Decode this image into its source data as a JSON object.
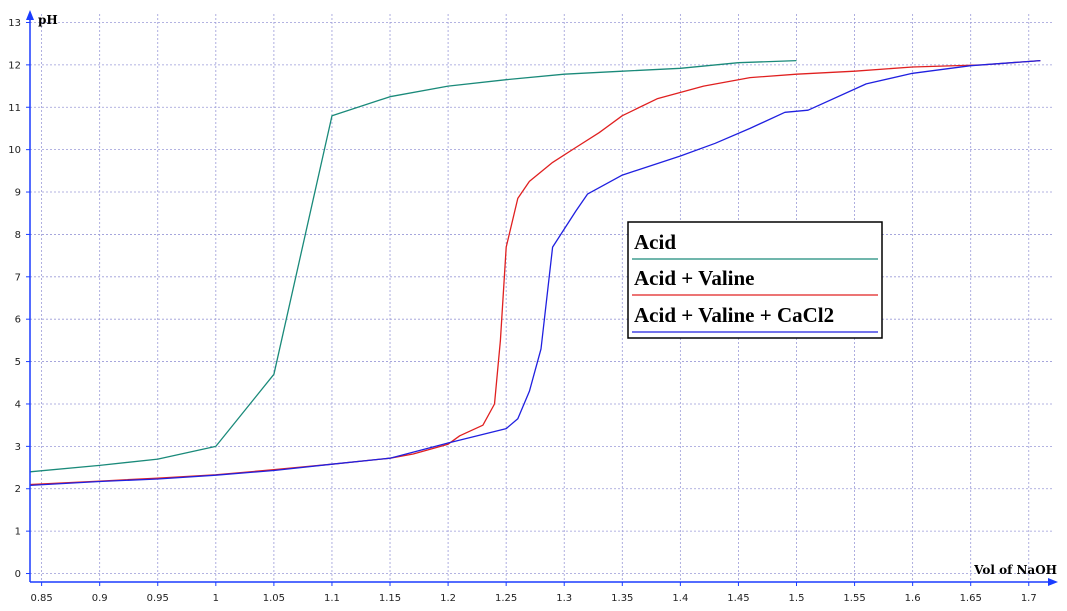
{
  "chart_data": {
    "type": "line",
    "xlabel": "Vol of NaOH",
    "ylabel": "pH",
    "xlim": [
      0.84,
      1.72
    ],
    "ylim": [
      -0.2,
      13.2
    ],
    "x_ticks": [
      "0.85",
      "0.9",
      "0.95",
      "1",
      "1.05",
      "1.1",
      "1.15",
      "1.2",
      "1.25",
      "1.3",
      "1.35",
      "1.4",
      "1.45",
      "1.5",
      "1.55",
      "1.6",
      "1.65",
      "1.7"
    ],
    "y_ticks": [
      "0",
      "1",
      "2",
      "3",
      "4",
      "5",
      "6",
      "7",
      "8",
      "9",
      "10",
      "11",
      "12",
      "13"
    ],
    "grid": true,
    "legend_position": "right-middle",
    "series": [
      {
        "name": "Acid",
        "color": "#1a8a7a",
        "points": [
          [
            0.84,
            2.4
          ],
          [
            0.9,
            2.55
          ],
          [
            0.95,
            2.7
          ],
          [
            1.0,
            3.0
          ],
          [
            1.05,
            4.7
          ],
          [
            1.1,
            10.8
          ],
          [
            1.15,
            11.25
          ],
          [
            1.2,
            11.5
          ],
          [
            1.25,
            11.65
          ],
          [
            1.3,
            11.78
          ],
          [
            1.35,
            11.85
          ],
          [
            1.4,
            11.92
          ],
          [
            1.45,
            12.05
          ],
          [
            1.5,
            12.1
          ]
        ]
      },
      {
        "name": "Acid + Valine",
        "color": "#e02020",
        "points": [
          [
            0.84,
            2.1
          ],
          [
            0.9,
            2.18
          ],
          [
            0.95,
            2.25
          ],
          [
            1.0,
            2.33
          ],
          [
            1.05,
            2.45
          ],
          [
            1.1,
            2.58
          ],
          [
            1.15,
            2.72
          ],
          [
            1.17,
            2.82
          ],
          [
            1.2,
            3.05
          ],
          [
            1.21,
            3.25
          ],
          [
            1.23,
            3.5
          ],
          [
            1.24,
            4.0
          ],
          [
            1.245,
            5.5
          ],
          [
            1.25,
            7.7
          ],
          [
            1.26,
            8.85
          ],
          [
            1.27,
            9.25
          ],
          [
            1.29,
            9.7
          ],
          [
            1.31,
            10.05
          ],
          [
            1.33,
            10.4
          ],
          [
            1.35,
            10.8
          ],
          [
            1.38,
            11.2
          ],
          [
            1.42,
            11.5
          ],
          [
            1.46,
            11.7
          ],
          [
            1.5,
            11.78
          ],
          [
            1.55,
            11.85
          ],
          [
            1.6,
            11.95
          ],
          [
            1.66,
            12.0
          ],
          [
            1.71,
            12.1
          ]
        ]
      },
      {
        "name": "Acid + Valine + CaCl2",
        "color": "#2020e0",
        "points": [
          [
            0.84,
            2.08
          ],
          [
            0.9,
            2.17
          ],
          [
            0.95,
            2.23
          ],
          [
            1.0,
            2.32
          ],
          [
            1.05,
            2.43
          ],
          [
            1.1,
            2.58
          ],
          [
            1.15,
            2.72
          ],
          [
            1.2,
            3.08
          ],
          [
            1.25,
            3.42
          ],
          [
            1.26,
            3.65
          ],
          [
            1.27,
            4.3
          ],
          [
            1.28,
            5.3
          ],
          [
            1.29,
            7.7
          ],
          [
            1.31,
            8.55
          ],
          [
            1.32,
            8.95
          ],
          [
            1.35,
            9.4
          ],
          [
            1.4,
            9.85
          ],
          [
            1.43,
            10.15
          ],
          [
            1.46,
            10.5
          ],
          [
            1.49,
            10.88
          ],
          [
            1.51,
            10.93
          ],
          [
            1.56,
            11.55
          ],
          [
            1.6,
            11.8
          ],
          [
            1.65,
            11.98
          ],
          [
            1.71,
            12.1
          ]
        ]
      }
    ]
  }
}
